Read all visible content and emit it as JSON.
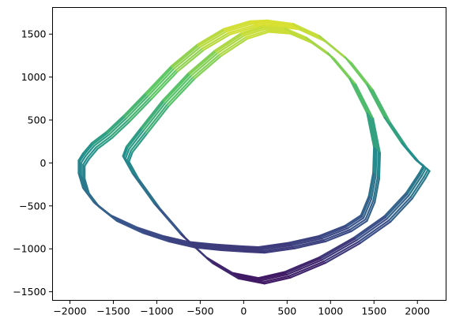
{
  "chart_data": {
    "type": "line",
    "title": "",
    "xlabel": "",
    "ylabel": "",
    "xlim": [
      -2200,
      2330
    ],
    "ylim": [
      -1600,
      1810
    ],
    "x_ticks": [
      -2000,
      -1500,
      -1000,
      -500,
      0,
      500,
      1000,
      1500,
      2000
    ],
    "x_tick_labels": [
      "−2000",
      "−1500",
      "−1000",
      "−500",
      "0",
      "500",
      "1000",
      "1500",
      "2000"
    ],
    "y_ticks": [
      -1500,
      -1000,
      -500,
      0,
      500,
      1000,
      1500
    ],
    "y_tick_labels": [
      "−1500",
      "−1000",
      "−500",
      "0",
      "500",
      "1000",
      "1500"
    ],
    "grid": false,
    "legend": "none",
    "colormap": "viridis",
    "colormap_stops": [
      "#440154",
      "#3b528b",
      "#21918c",
      "#5ec962",
      "#fde725"
    ],
    "series": [
      {
        "description_points": [
          [
            0,
            -1000
          ],
          [
            -300,
            -980
          ],
          [
            -600,
            -950
          ],
          [
            -900,
            -880
          ],
          [
            -1200,
            -780
          ],
          [
            -1500,
            -640
          ],
          [
            -1700,
            -480
          ],
          [
            -1820,
            -320
          ],
          [
            -1870,
            -150
          ],
          [
            -1870,
            0
          ],
          [
            -1820,
            80
          ],
          [
            -1720,
            200
          ],
          [
            -1550,
            330
          ],
          [
            -1350,
            520
          ],
          [
            -1100,
            780
          ],
          [
            -800,
            1100
          ],
          [
            -500,
            1350
          ],
          [
            -200,
            1530
          ],
          [
            100,
            1620
          ],
          [
            300,
            1630
          ],
          [
            600,
            1590
          ],
          [
            900,
            1450
          ],
          [
            1200,
            1200
          ],
          [
            1450,
            880
          ],
          [
            1650,
            500
          ],
          [
            1850,
            200
          ],
          [
            2000,
            20
          ],
          [
            2100,
            -60
          ],
          [
            2050,
            -150
          ],
          [
            1900,
            -380
          ],
          [
            1650,
            -650
          ],
          [
            1300,
            -900
          ],
          [
            900,
            -1130
          ],
          [
            500,
            -1300
          ],
          [
            200,
            -1370
          ],
          [
            -100,
            -1310
          ],
          [
            -400,
            -1130
          ],
          [
            -700,
            -850
          ],
          [
            -1000,
            -500
          ],
          [
            -1250,
            -150
          ],
          [
            -1360,
            50
          ],
          [
            -1320,
            160
          ],
          [
            -1150,
            380
          ],
          [
            -900,
            700
          ],
          [
            -600,
            1020
          ],
          [
            -300,
            1280
          ],
          [
            0,
            1480
          ],
          [
            250,
            1560
          ],
          [
            500,
            1540
          ],
          [
            750,
            1430
          ],
          [
            1000,
            1250
          ],
          [
            1250,
            950
          ],
          [
            1450,
            550
          ],
          [
            1530,
            150
          ],
          [
            1520,
            -150
          ],
          [
            1470,
            -420
          ],
          [
            1380,
            -640
          ],
          [
            1200,
            -760
          ],
          [
            900,
            -880
          ],
          [
            550,
            -960
          ],
          [
            200,
            -1010
          ],
          [
            0,
            -1000
          ]
        ]
      }
    ]
  }
}
